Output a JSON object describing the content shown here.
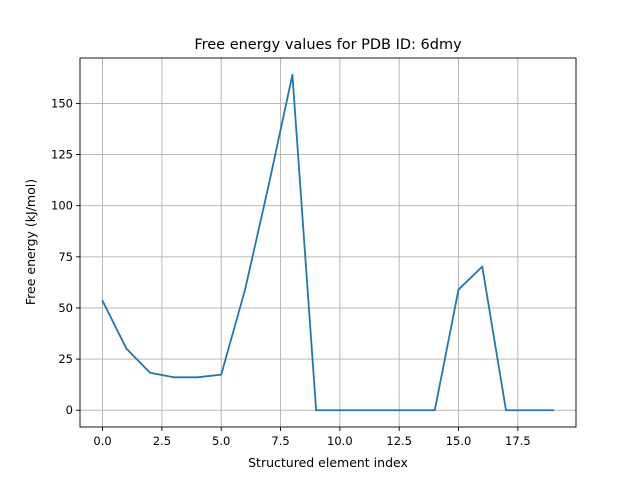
{
  "chart_data": {
    "type": "line",
    "title": "Free energy values for PDB ID: 6dmy",
    "xlabel": "Structured element index",
    "ylabel": "Free energy (kJ/mol)",
    "xlim": [
      -0.95,
      19.95
    ],
    "ylim": [
      -8.2,
      172.2
    ],
    "xticks": [
      0.0,
      2.5,
      5.0,
      7.5,
      10.0,
      12.5,
      15.0,
      17.5
    ],
    "xtick_labels": [
      "0.0",
      "2.5",
      "5.0",
      "7.5",
      "10.0",
      "12.5",
      "15.0",
      "17.5"
    ],
    "yticks": [
      0,
      25,
      50,
      75,
      100,
      125,
      150
    ],
    "ytick_labels": [
      "0",
      "25",
      "50",
      "75",
      "100",
      "125",
      "150"
    ],
    "grid": true,
    "line_color": "#1f77b4",
    "series": [
      {
        "x": [
          0,
          1,
          2,
          3,
          4,
          5,
          6,
          7,
          8,
          9,
          10,
          11,
          12,
          13,
          14,
          15,
          16,
          17,
          18,
          19
        ],
        "values": [
          53.5,
          30.2,
          18.3,
          16.1,
          16.1,
          17.4,
          58.7,
          110,
          164,
          0,
          0,
          0,
          0,
          0,
          0,
          59,
          70.2,
          0,
          0,
          0
        ]
      }
    ]
  }
}
